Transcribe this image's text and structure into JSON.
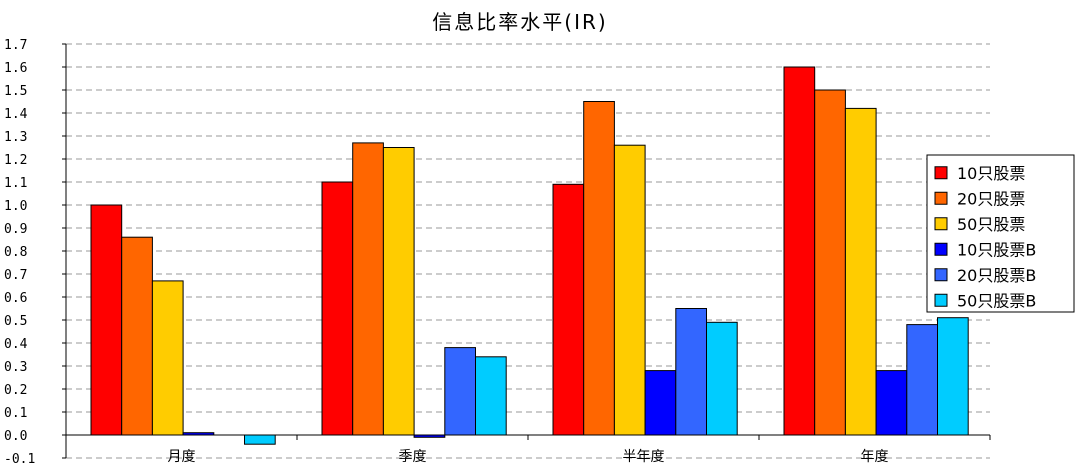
{
  "chart_data": {
    "type": "bar",
    "title": "信息比率水平(IR)",
    "xlabel": "",
    "ylabel": "",
    "categories": [
      "月度",
      "季度",
      "半年度",
      "年度"
    ],
    "ylim": [
      -0.1,
      1.7
    ],
    "y_ticks": [
      "1.7",
      "1.6",
      "1.5",
      "1.4",
      "1.3",
      "1.2",
      "1.1",
      "1.0",
      "0.9",
      "0.8",
      "0.7",
      "0.6",
      "0.5",
      "0.4",
      "0.3",
      "0.2",
      "0.1",
      "0.0",
      "-0.1"
    ],
    "grid": true,
    "legend_position": "right",
    "series": [
      {
        "name": "10只股票",
        "color": "#ff0000",
        "values": [
          1.0,
          1.1,
          1.09,
          1.6
        ]
      },
      {
        "name": "20只股票",
        "color": "#ff6600",
        "values": [
          0.86,
          1.27,
          1.45,
          1.5
        ]
      },
      {
        "name": "50只股票",
        "color": "#ffcc00",
        "values": [
          0.67,
          1.25,
          1.26,
          1.42
        ]
      },
      {
        "name": "10只股票B",
        "color": "#0000ff",
        "values": [
          0.01,
          -0.01,
          0.28,
          0.28
        ]
      },
      {
        "name": "20只股票B",
        "color": "#3366ff",
        "values": [
          0.0,
          0.38,
          0.55,
          0.48
        ]
      },
      {
        "name": "50只股票B",
        "color": "#00ccff",
        "values": [
          -0.04,
          0.34,
          0.49,
          0.51
        ]
      }
    ]
  }
}
